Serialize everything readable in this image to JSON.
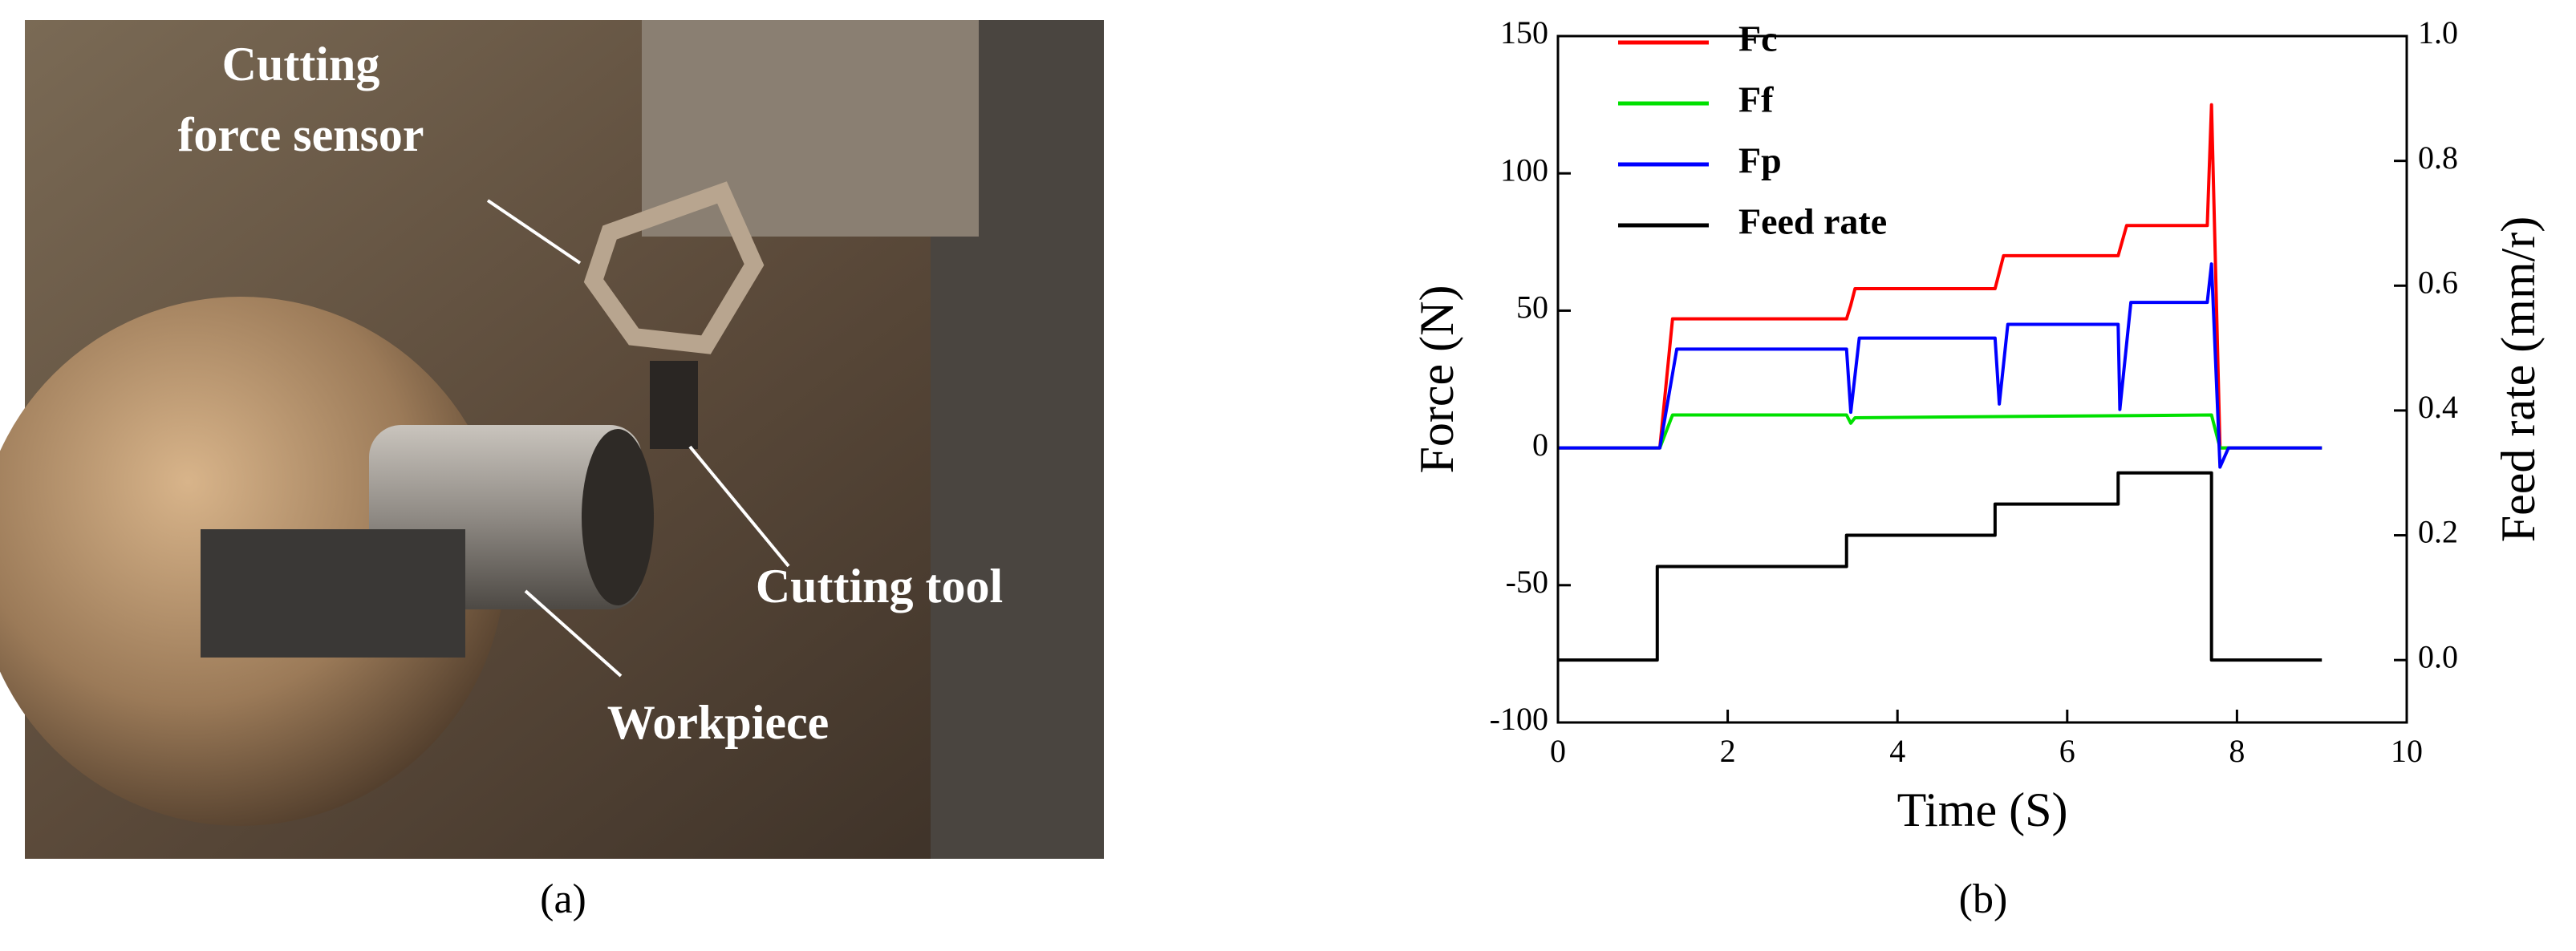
{
  "photo": {
    "labels": [
      "Cutting",
      "force sensor",
      "Cutting tool",
      "Workpiece"
    ],
    "caption": "(a)"
  },
  "chart_data": {
    "type": "line",
    "caption": "(b)",
    "xlabel": "Time (S)",
    "ylabel": "Force (N)",
    "y2label": "Feed rate (mm/r)",
    "xlim": [
      0,
      10
    ],
    "xticks": [
      0,
      2,
      4,
      6,
      8,
      10
    ],
    "ylim": [
      -100,
      150
    ],
    "yticks": [
      -100,
      -50,
      0,
      50,
      100,
      150
    ],
    "y2lim": [
      -0.1,
      1.0
    ],
    "y2ticks": [
      {
        "value": 0,
        "label": "0.0"
      },
      0.2,
      0.4,
      0.6,
      0.8,
      {
        "value": 1,
        "label": "1.0"
      }
    ],
    "legend": "upper left",
    "series": [
      {
        "name": "Fc",
        "color": "#ff0000",
        "x": [
          0,
          1.2,
          1.35,
          3.4,
          3.45,
          3.5,
          5.15,
          5.25,
          6.6,
          6.7,
          7.65,
          7.7,
          7.8,
          9
        ],
        "values": [
          0,
          0,
          47,
          47,
          52,
          58,
          58,
          70,
          70,
          81,
          81,
          125,
          0,
          0
        ]
      },
      {
        "name": "Ff",
        "color": "#00e000",
        "x": [
          0,
          1.2,
          1.35,
          3.4,
          3.45,
          3.5,
          7.7,
          7.8,
          9
        ],
        "values": [
          0,
          0,
          12,
          12,
          9,
          11,
          12,
          0,
          0
        ]
      },
      {
        "name": "Fp",
        "color": "#0000ff",
        "x": [
          0,
          1.2,
          1.4,
          3.4,
          3.45,
          3.55,
          5.15,
          5.2,
          5.3,
          6.6,
          6.62,
          6.75,
          7.65,
          7.7,
          7.8,
          7.9,
          9
        ],
        "values": [
          0,
          0,
          36,
          36,
          13,
          40,
          40,
          16,
          45,
          45,
          14,
          53,
          53,
          67,
          -7,
          0,
          0
        ]
      },
      {
        "name": "Feed rate",
        "color": "#000000",
        "axis": "y2",
        "x": [
          0,
          1.17,
          1.17,
          3.4,
          3.4,
          5.15,
          5.15,
          6.6,
          6.6,
          7.7,
          7.7,
          9
        ],
        "values": [
          0,
          0,
          0.15,
          0.15,
          0.2,
          0.2,
          0.25,
          0.25,
          0.3,
          0.3,
          0,
          0
        ]
      }
    ]
  }
}
